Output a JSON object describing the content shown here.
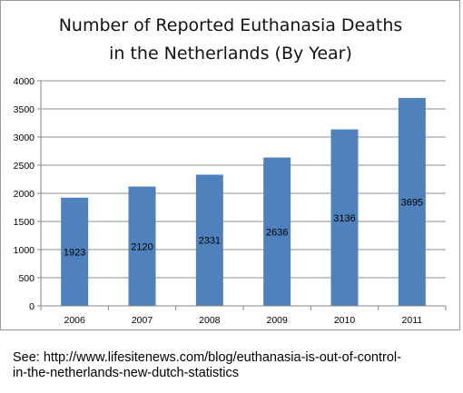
{
  "chart_data": {
    "type": "bar",
    "title_lines": [
      "Number of Reported Euthanasia Deaths",
      "in the Netherlands (By Year)"
    ],
    "categories": [
      "2006",
      "2007",
      "2008",
      "2009",
      "2010",
      "2011"
    ],
    "values": [
      1923,
      2120,
      2331,
      2636,
      3136,
      3695
    ],
    "data_labels": [
      "1923",
      "2120",
      "2331",
      "2636",
      "3136",
      "3695"
    ],
    "y_ticks": [
      "0",
      "500",
      "1000",
      "1500",
      "2000",
      "2500",
      "3000",
      "3500",
      "4000"
    ],
    "ylim": [
      0,
      4000
    ],
    "xlabel": "",
    "ylabel": "",
    "grid": true,
    "legend": "none",
    "bar_color": "#4f81bd",
    "grid_color": "#8c8c8c"
  },
  "caption": {
    "line1": "See: http://www.lifesitenews.com/blog/euthanasia-is-out-of-control-",
    "line2": "in-the-netherlands-new-dutch-statistics"
  }
}
